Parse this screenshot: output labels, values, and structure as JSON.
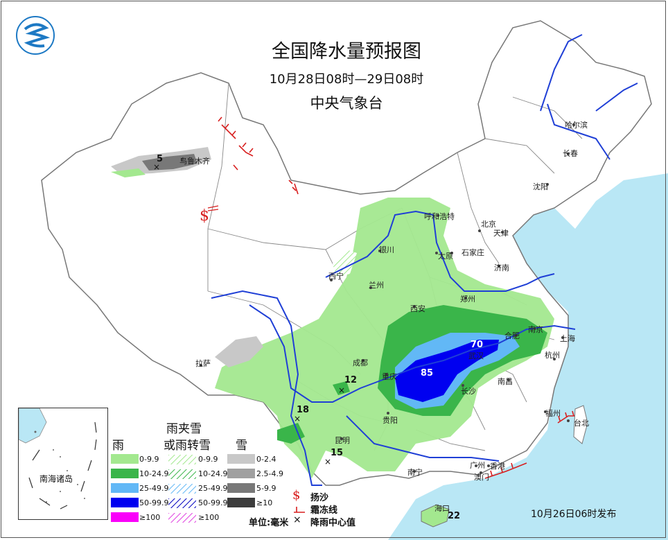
{
  "header": {
    "title": "全国降水量预报图",
    "period": "10月28日08时—29日08时",
    "agency": "中央气象台"
  },
  "issue_time": "10月26日06时发布",
  "cities": [
    {
      "id": "harbin",
      "name": "哈尔滨"
    },
    {
      "id": "changchun",
      "name": "长春"
    },
    {
      "id": "shenyang",
      "name": "沈阳"
    },
    {
      "id": "hohhot",
      "name": "呼和浩特"
    },
    {
      "id": "beijing",
      "name": "北京"
    },
    {
      "id": "tianjin",
      "name": "天津"
    },
    {
      "id": "shijiazhuang",
      "name": "石家庄"
    },
    {
      "id": "taiyuan",
      "name": "太原"
    },
    {
      "id": "jinan",
      "name": "济南"
    },
    {
      "id": "yinchuan",
      "name": "银川"
    },
    {
      "id": "xining",
      "name": "西宁"
    },
    {
      "id": "lanzhou",
      "name": "兰州"
    },
    {
      "id": "zhengzhou",
      "name": "郑州"
    },
    {
      "id": "xian",
      "name": "西安"
    },
    {
      "id": "hefei",
      "name": "合肥"
    },
    {
      "id": "nanjing",
      "name": "南京"
    },
    {
      "id": "shanghai",
      "name": "上海"
    },
    {
      "id": "hangzhou",
      "name": "杭州"
    },
    {
      "id": "wuhan",
      "name": "武汉"
    },
    {
      "id": "chengdu",
      "name": "成都"
    },
    {
      "id": "chongqing",
      "name": "重庆"
    },
    {
      "id": "changsha",
      "name": "长沙"
    },
    {
      "id": "nanchang",
      "name": "南昌"
    },
    {
      "id": "fuzhou",
      "name": "福州"
    },
    {
      "id": "taipei",
      "name": "台北"
    },
    {
      "id": "guiyang",
      "name": "贵阳"
    },
    {
      "id": "kunming",
      "name": "昆明"
    },
    {
      "id": "nanning",
      "name": "南宁"
    },
    {
      "id": "guangzhou",
      "name": "广州"
    },
    {
      "id": "hongkong",
      "name": "香港"
    },
    {
      "id": "macau",
      "name": "澳门"
    },
    {
      "id": "haikou",
      "name": "海口"
    },
    {
      "id": "lhasa",
      "name": "拉萨"
    },
    {
      "id": "urumqi",
      "name": "乌鲁木齐"
    }
  ],
  "center_values": [
    {
      "id": "urumqi",
      "value": "5"
    },
    {
      "id": "sichuan",
      "value": "12"
    },
    {
      "id": "yunnan_w",
      "value": "18"
    },
    {
      "id": "yunnan_s",
      "value": "15"
    },
    {
      "id": "hubei",
      "value": "70"
    },
    {
      "id": "chongqing_e",
      "value": "85"
    },
    {
      "id": "hainan",
      "value": "22"
    }
  ],
  "inset": {
    "label": "南海诸岛"
  },
  "legend": {
    "rain_header": "雨",
    "mixed_header_line1": "雨夹雪",
    "mixed_header_line2": "或雨转雪",
    "snow_header": "雪",
    "rain": [
      {
        "label": "0-9.9",
        "color": "#a3e88f"
      },
      {
        "label": "10-24.9",
        "color": "#3ab54a"
      },
      {
        "label": "25-49.9",
        "color": "#62b8f6"
      },
      {
        "label": "50-99.9",
        "color": "#0000f0"
      },
      {
        "label": "≥100",
        "color": "#fa00fa"
      }
    ],
    "mixed": [
      {
        "label": "0-9.9"
      },
      {
        "label": "10-24.9"
      },
      {
        "label": "25-49.9"
      },
      {
        "label": "50-99.9"
      },
      {
        "label": "≥100"
      }
    ],
    "snow": [
      {
        "label": "0-2.4",
        "color": "#c8c8c8"
      },
      {
        "label": "2.5-4.9",
        "color": "#a0a0a0"
      },
      {
        "label": "5-9.9",
        "color": "#787878"
      },
      {
        "label": "≥10",
        "color": "#3c3c3c"
      }
    ],
    "sandstorm_label": "扬沙",
    "frost_label": "霜冻线",
    "center_label": "降雨中心值",
    "unit": "单位:毫米"
  },
  "colors": {
    "sea": "#b9e7f5",
    "land": "#ffffff",
    "border": "#888888",
    "river": "#1f3fd6",
    "frost": "#d81e1e"
  }
}
